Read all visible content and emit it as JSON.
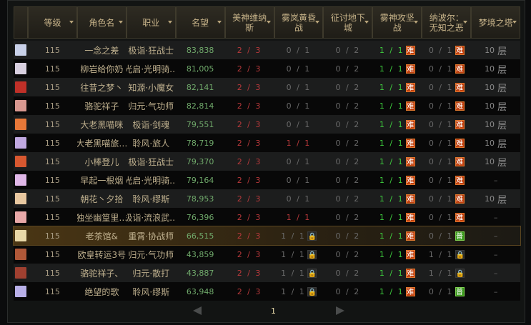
{
  "headers": [
    "等级",
    "角色名",
    "职业",
    "名望",
    "美神维纳斯",
    "雾岚黄昏战",
    "征讨地下城",
    "雾神攻坚战",
    "纳波尔：无知之恶",
    "梦境之塔"
  ],
  "tags": {
    "hard": "难",
    "normal": "普",
    "lock": "🔒"
  },
  "floor_suffix": "层",
  "rows": [
    {
      "avatar": "#c8d0e8",
      "level": "115",
      "name": "一念之差",
      "job": "极诣·狂战士",
      "rep": "83,838",
      "venus": "2 / 3",
      "mist": "0 / 1",
      "mist_style": "gray",
      "mist_tag": "",
      "dungeon": "0 / 2",
      "siege": "1 / 1",
      "siege_tag": "hard",
      "nabol": "0 / 1",
      "nabol_style": "gray",
      "nabol_tag": "hard",
      "tower": "10"
    },
    {
      "avatar": "#d8d0e0",
      "level": "115",
      "name": "柳岩给你奶",
      "job": "光启·光明骑…",
      "rep": "81,005",
      "venus": "2 / 3",
      "mist": "0 / 1",
      "mist_style": "gray",
      "mist_tag": "",
      "dungeon": "0 / 2",
      "siege": "1 / 1",
      "siege_tag": "hard",
      "nabol": "0 / 1",
      "nabol_style": "gray",
      "nabol_tag": "hard",
      "tower": "10"
    },
    {
      "avatar": "#c03028",
      "level": "115",
      "name": "往昔之梦丶",
      "job": "知源·小魔女",
      "rep": "82,141",
      "venus": "2 / 3",
      "mist": "0 / 1",
      "mist_style": "gray",
      "mist_tag": "",
      "dungeon": "0 / 2",
      "siege": "1 / 1",
      "siege_tag": "hard",
      "nabol": "0 / 1",
      "nabol_style": "gray",
      "nabol_tag": "hard",
      "tower": "10"
    },
    {
      "avatar": "#d89890",
      "level": "115",
      "name": "骆驼祥子",
      "job": "归元·气功师",
      "rep": "82,814",
      "venus": "2 / 3",
      "mist": "0 / 1",
      "mist_style": "gray",
      "mist_tag": "",
      "dungeon": "0 / 2",
      "siege": "1 / 1",
      "siege_tag": "hard",
      "nabol": "0 / 1",
      "nabol_style": "gray",
      "nabol_tag": "hard",
      "tower": "10"
    },
    {
      "avatar": "#e87838",
      "level": "115",
      "name": "大老黑喵咪",
      "job": "极诣·剑魂",
      "rep": "79,551",
      "venus": "2 / 3",
      "mist": "0 / 1",
      "mist_style": "gray",
      "mist_tag": "",
      "dungeon": "0 / 2",
      "siege": "1 / 1",
      "siege_tag": "hard",
      "nabol": "0 / 1",
      "nabol_style": "gray",
      "nabol_tag": "hard",
      "tower": "10"
    },
    {
      "avatar": "#c0a8e0",
      "level": "115",
      "name": "大老黑喵旅…",
      "job": "聆风·旅人",
      "rep": "78,719",
      "venus": "2 / 3",
      "mist": "1 / 1",
      "mist_style": "red",
      "mist_tag": "",
      "dungeon": "0 / 2",
      "siege": "1 / 1",
      "siege_tag": "hard",
      "nabol": "0 / 1",
      "nabol_style": "gray",
      "nabol_tag": "hard",
      "tower": "10"
    },
    {
      "avatar": "#d85830",
      "level": "115",
      "name": "小棒登儿",
      "job": "极诣·狂战士",
      "rep": "79,370",
      "venus": "2 / 3",
      "mist": "0 / 1",
      "mist_style": "gray",
      "mist_tag": "",
      "dungeon": "0 / 2",
      "siege": "1 / 1",
      "siege_tag": "hard",
      "nabol": "0 / 1",
      "nabol_style": "gray",
      "nabol_tag": "hard",
      "tower": "10"
    },
    {
      "avatar": "#e0b8e8",
      "level": "115",
      "name": "早起一根烟",
      "job": "光启·光明骑…",
      "rep": "79,164",
      "venus": "2 / 3",
      "mist": "0 / 1",
      "mist_style": "gray",
      "mist_tag": "",
      "dungeon": "0 / 2",
      "siege": "1 / 1",
      "siege_tag": "hard",
      "nabol": "0 / 1",
      "nabol_style": "gray",
      "nabol_tag": "hard",
      "tower": ""
    },
    {
      "avatar": "#e8c8a0",
      "level": "115",
      "name": "朝花丶夕拾",
      "job": "聆风·缪斯",
      "rep": "78,953",
      "venus": "2 / 3",
      "mist": "0 / 1",
      "mist_style": "gray",
      "mist_tag": "",
      "dungeon": "0 / 2",
      "siege": "1 / 1",
      "siege_tag": "hard",
      "nabol": "0 / 1",
      "nabol_style": "gray",
      "nabol_tag": "hard",
      "tower": "10"
    },
    {
      "avatar": "#e8a8a8",
      "level": "115",
      "name": "独坐幽篁里…",
      "job": "极诣·流浪武…",
      "rep": "76,396",
      "venus": "2 / 3",
      "mist": "1 / 1",
      "mist_style": "red",
      "mist_tag": "",
      "dungeon": "0 / 2",
      "siege": "1 / 1",
      "siege_tag": "hard",
      "nabol": "0 / 1",
      "nabol_style": "gray",
      "nabol_tag": "hard",
      "tower": ""
    },
    {
      "avatar": "#e8d8a8",
      "level": "115",
      "name": "老茶馆&",
      "job": "重霄·协战师",
      "rep": "66,515",
      "venus": "2 / 3",
      "mist": "1 / 1",
      "mist_style": "gray",
      "mist_tag": "lock",
      "dungeon": "0 / 2",
      "siege": "1 / 1",
      "siege_tag": "hard",
      "nabol": "0 / 1",
      "nabol_style": "gray",
      "nabol_tag": "normal",
      "tower": "",
      "highlight": true
    },
    {
      "avatar": "#b05838",
      "level": "115",
      "name": "欧皇转运3号",
      "job": "归元·气功师",
      "rep": "43,859",
      "venus": "2 / 3",
      "mist": "1 / 1",
      "mist_style": "gray",
      "mist_tag": "lock",
      "dungeon": "0 / 2",
      "siege": "1 / 1",
      "siege_tag": "hard",
      "nabol": "1 / 1",
      "nabol_style": "gray",
      "nabol_tag": "lock",
      "tower": ""
    },
    {
      "avatar": "#a04030",
      "level": "115",
      "name": "骆驼祥子、",
      "job": "归元·散打",
      "rep": "43,887",
      "venus": "2 / 3",
      "mist": "1 / 1",
      "mist_style": "gray",
      "mist_tag": "lock",
      "dungeon": "0 / 2",
      "siege": "1 / 1",
      "siege_tag": "hard",
      "nabol": "1 / 1",
      "nabol_style": "gray",
      "nabol_tag": "lock",
      "tower": ""
    },
    {
      "avatar": "#b8b0e8",
      "level": "115",
      "name": "绝望的歌",
      "job": "聆风·缪斯",
      "rep": "63,948",
      "venus": "2 / 3",
      "mist": "1 / 1",
      "mist_style": "gray",
      "mist_tag": "lock",
      "dungeon": "0 / 2",
      "siege": "1 / 1",
      "siege_tag": "hard",
      "nabol": "0 / 1",
      "nabol_style": "gray",
      "nabol_tag": "normal",
      "tower": ""
    }
  ],
  "empty_tower": "–",
  "pagination": {
    "current_page": "1"
  }
}
